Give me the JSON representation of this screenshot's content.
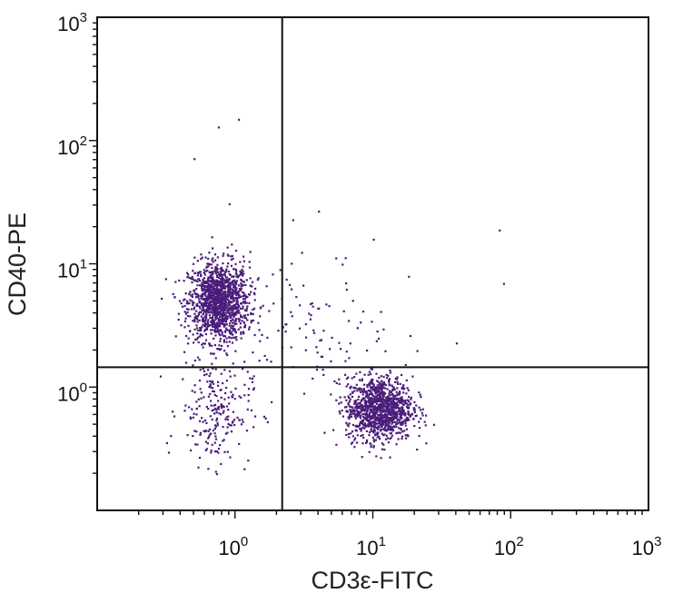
{
  "chart_data": {
    "type": "scatter",
    "title": "",
    "xlabel": "CD3ε-FITC",
    "ylabel": "CD40-PE",
    "xscale": "log",
    "yscale": "log",
    "xlim": [
      0.1,
      1000
    ],
    "ylim": [
      0.1,
      1000
    ],
    "x_ticks": [
      {
        "base": "10",
        "exp": "0",
        "value": 1
      },
      {
        "base": "10",
        "exp": "1",
        "value": 10
      },
      {
        "base": "10",
        "exp": "2",
        "value": 100
      },
      {
        "base": "10",
        "exp": "3",
        "value": 1000
      }
    ],
    "y_ticks": [
      {
        "base": "10",
        "exp": "0",
        "value": 1
      },
      {
        "base": "10",
        "exp": "1",
        "value": 10
      },
      {
        "base": "10",
        "exp": "2",
        "value": 100
      },
      {
        "base": "10",
        "exp": "3",
        "value": 1000
      }
    ],
    "gates": {
      "x": 2.2,
      "y": 1.45
    },
    "grid": false,
    "point_color": "#4a1c7a",
    "populations": [
      {
        "center": [
          0.75,
          5.0
        ],
        "spread_log": [
          0.11,
          0.16
        ],
        "count": 1300
      },
      {
        "center": [
          0.7,
          0.65
        ],
        "spread_log": [
          0.13,
          0.22
        ],
        "count": 220
      },
      {
        "center": [
          11,
          0.68
        ],
        "spread_log": [
          0.12,
          0.13
        ],
        "count": 1100
      },
      {
        "center": [
          3.5,
          3.0
        ],
        "spread_log": [
          0.3,
          0.3
        ],
        "count": 110
      }
    ],
    "outliers": [
      [
        0.75,
        130
      ],
      [
        1.05,
        150
      ],
      [
        0.5,
        72
      ],
      [
        0.9,
        31
      ],
      [
        10,
        16
      ],
      [
        18,
        8
      ],
      [
        82,
        19
      ],
      [
        88,
        7
      ],
      [
        4,
        27
      ],
      [
        2.6,
        23
      ],
      [
        40,
        2.3
      ]
    ]
  }
}
